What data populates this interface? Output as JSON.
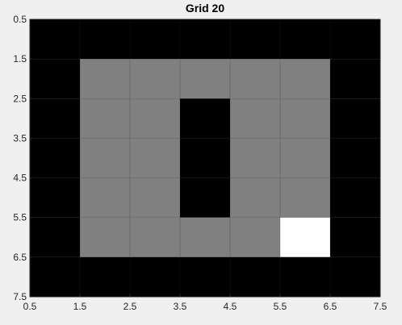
{
  "chart_data": {
    "type": "heatmap",
    "title": "Grid 20",
    "xlabel": "",
    "ylabel": "",
    "xlim": [
      0.5,
      7.5
    ],
    "ylim": [
      0.5,
      7.5
    ],
    "y_direction": "reverse",
    "grid": true,
    "x_ticks": [
      "0.5",
      "1.5",
      "2.5",
      "3.5",
      "4.5",
      "5.5",
      "6.5",
      "7.5"
    ],
    "y_ticks": [
      "0.5",
      "1.5",
      "2.5",
      "3.5",
      "4.5",
      "5.5",
      "6.5",
      "7.5"
    ],
    "colormap": {
      "0": "#000000",
      "0.5": "#808080",
      "1": "#ffffff"
    },
    "values": [
      [
        0,
        0,
        0,
        0,
        0,
        0,
        0
      ],
      [
        0,
        0.5,
        0.5,
        0.5,
        0.5,
        0.5,
        0
      ],
      [
        0,
        0.5,
        0.5,
        0,
        0.5,
        0.5,
        0
      ],
      [
        0,
        0.5,
        0.5,
        0,
        0.5,
        0.5,
        0
      ],
      [
        0,
        0.5,
        0.5,
        0,
        0.5,
        0.5,
        0
      ],
      [
        0,
        0.5,
        0.5,
        0.5,
        0.5,
        1,
        0
      ],
      [
        0,
        0,
        0,
        0,
        0,
        0,
        0
      ]
    ]
  }
}
